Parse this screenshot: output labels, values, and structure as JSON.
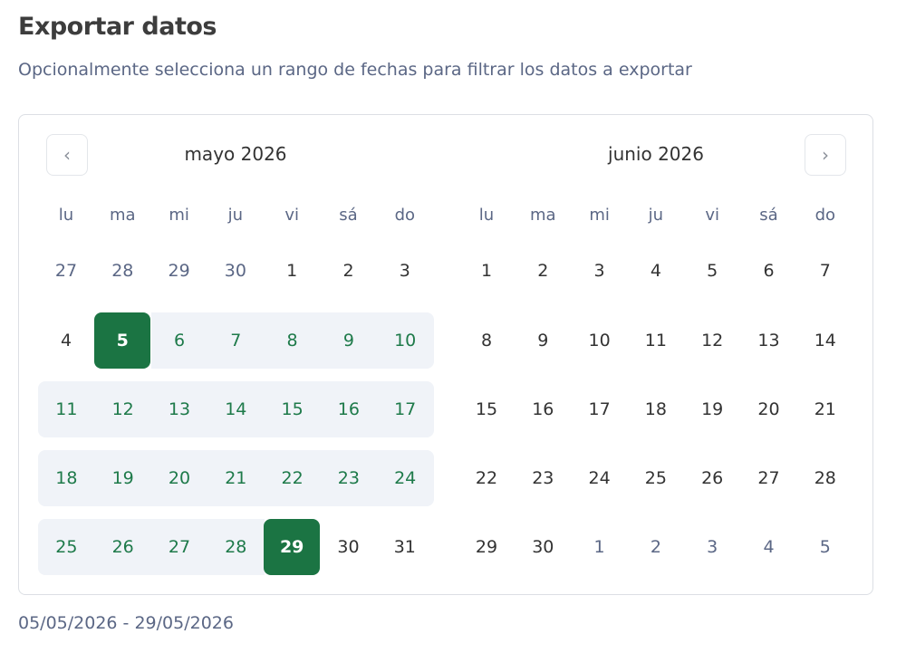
{
  "header": {
    "title": "Exportar datos",
    "subtitle": "Opcionalmente selecciona un rango de fechas para filtrar los datos a exportar"
  },
  "calendar": {
    "prev_icon": "chevron-left-icon",
    "next_icon": "chevron-right-icon",
    "weekdays": [
      "lu",
      "ma",
      "mi",
      "ju",
      "vi",
      "sá",
      "do"
    ],
    "colors": {
      "selected": "#1b7443",
      "range_bg": "#f0f3f8",
      "range_text": "#1e7a4a"
    },
    "months": [
      {
        "title": "mayo 2026",
        "weeks": [
          [
            {
              "d": "27",
              "s": "outside"
            },
            {
              "d": "28",
              "s": "outside"
            },
            {
              "d": "29",
              "s": "outside"
            },
            {
              "d": "30",
              "s": "outside"
            },
            {
              "d": "1",
              "s": "normal"
            },
            {
              "d": "2",
              "s": "normal"
            },
            {
              "d": "3",
              "s": "normal"
            }
          ],
          [
            {
              "d": "4",
              "s": "normal"
            },
            {
              "d": "5",
              "s": "start"
            },
            {
              "d": "6",
              "s": "range"
            },
            {
              "d": "7",
              "s": "range"
            },
            {
              "d": "8",
              "s": "range"
            },
            {
              "d": "9",
              "s": "range"
            },
            {
              "d": "10",
              "s": "range"
            }
          ],
          [
            {
              "d": "11",
              "s": "range"
            },
            {
              "d": "12",
              "s": "range"
            },
            {
              "d": "13",
              "s": "range"
            },
            {
              "d": "14",
              "s": "range"
            },
            {
              "d": "15",
              "s": "range"
            },
            {
              "d": "16",
              "s": "range"
            },
            {
              "d": "17",
              "s": "range"
            }
          ],
          [
            {
              "d": "18",
              "s": "range"
            },
            {
              "d": "19",
              "s": "range"
            },
            {
              "d": "20",
              "s": "range"
            },
            {
              "d": "21",
              "s": "range"
            },
            {
              "d": "22",
              "s": "range"
            },
            {
              "d": "23",
              "s": "range"
            },
            {
              "d": "24",
              "s": "range"
            }
          ],
          [
            {
              "d": "25",
              "s": "range"
            },
            {
              "d": "26",
              "s": "range"
            },
            {
              "d": "27",
              "s": "range"
            },
            {
              "d": "28",
              "s": "range"
            },
            {
              "d": "29",
              "s": "end"
            },
            {
              "d": "30",
              "s": "normal"
            },
            {
              "d": "31",
              "s": "normal"
            }
          ]
        ]
      },
      {
        "title": "junio 2026",
        "weeks": [
          [
            {
              "d": "1",
              "s": "normal"
            },
            {
              "d": "2",
              "s": "normal"
            },
            {
              "d": "3",
              "s": "normal"
            },
            {
              "d": "4",
              "s": "normal"
            },
            {
              "d": "5",
              "s": "normal"
            },
            {
              "d": "6",
              "s": "normal"
            },
            {
              "d": "7",
              "s": "normal"
            }
          ],
          [
            {
              "d": "8",
              "s": "normal"
            },
            {
              "d": "9",
              "s": "normal"
            },
            {
              "d": "10",
              "s": "normal"
            },
            {
              "d": "11",
              "s": "normal"
            },
            {
              "d": "12",
              "s": "normal"
            },
            {
              "d": "13",
              "s": "normal"
            },
            {
              "d": "14",
              "s": "normal"
            }
          ],
          [
            {
              "d": "15",
              "s": "normal"
            },
            {
              "d": "16",
              "s": "normal"
            },
            {
              "d": "17",
              "s": "normal"
            },
            {
              "d": "18",
              "s": "normal"
            },
            {
              "d": "19",
              "s": "normal"
            },
            {
              "d": "20",
              "s": "normal"
            },
            {
              "d": "21",
              "s": "normal"
            }
          ],
          [
            {
              "d": "22",
              "s": "normal"
            },
            {
              "d": "23",
              "s": "normal"
            },
            {
              "d": "24",
              "s": "normal"
            },
            {
              "d": "25",
              "s": "normal"
            },
            {
              "d": "26",
              "s": "normal"
            },
            {
              "d": "27",
              "s": "normal"
            },
            {
              "d": "28",
              "s": "normal"
            }
          ],
          [
            {
              "d": "29",
              "s": "normal"
            },
            {
              "d": "30",
              "s": "normal"
            },
            {
              "d": "1",
              "s": "outside"
            },
            {
              "d": "2",
              "s": "outside"
            },
            {
              "d": "3",
              "s": "outside"
            },
            {
              "d": "4",
              "s": "outside"
            },
            {
              "d": "5",
              "s": "outside"
            }
          ]
        ]
      }
    ]
  },
  "summary": "05/05/2026 - 29/05/2026"
}
